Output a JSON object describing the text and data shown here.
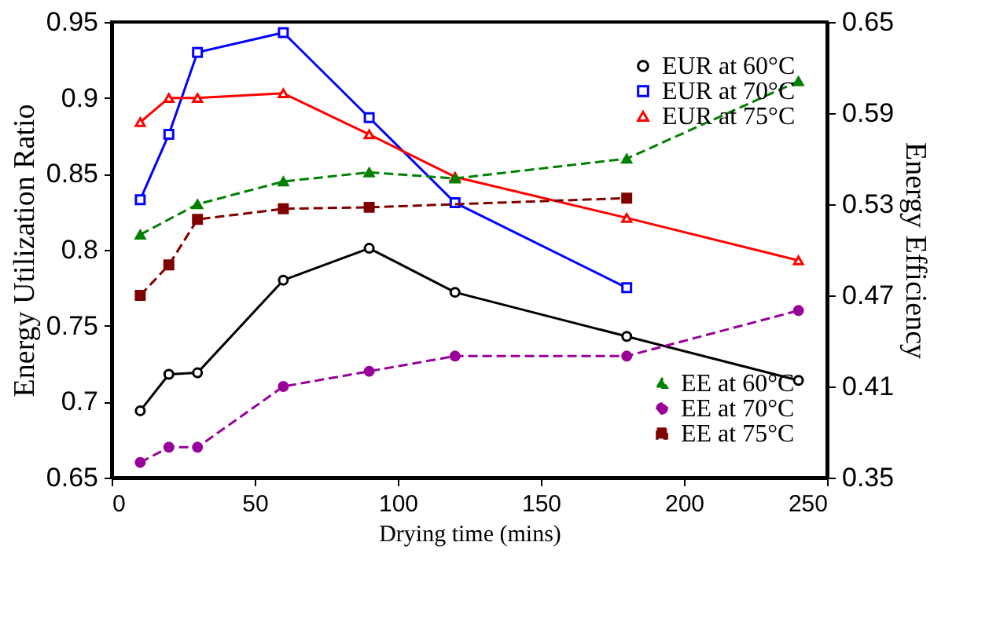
{
  "chart_data": {
    "type": "line",
    "xlabel": "Drying time (mins)",
    "ylabel": "Energy Utilization Ratio",
    "y2label": "Energy Efficiency",
    "xlim": [
      0,
      250
    ],
    "xticks": [
      0,
      50,
      100,
      150,
      200,
      250
    ],
    "ylim": [
      0.65,
      0.95
    ],
    "yticks": [
      0.65,
      0.7,
      0.75,
      0.8,
      0.85,
      0.9,
      0.95
    ],
    "y2lim": [
      0.35,
      0.65
    ],
    "y2ticks": [
      0.35,
      0.41,
      0.47,
      0.53,
      0.59,
      0.65
    ],
    "grid": false,
    "legend": "top right",
    "series": [
      {
        "name": "EUR at 60°C",
        "color": "#000000",
        "marker": "circle",
        "line_style": "solid",
        "x": [
          10,
          20,
          30,
          60,
          90,
          120,
          180,
          240
        ],
        "values": [
          0.694,
          0.718,
          0.719,
          0.78,
          0.801,
          0.772,
          0.743,
          0.714
        ]
      },
      {
        "name": "EUR at 70°C",
        "color": "#0000ff",
        "marker": "square",
        "line_style": "solid",
        "x": [
          10,
          20,
          30,
          60,
          90,
          120,
          180
        ],
        "values": [
          0.833,
          0.876,
          0.93,
          0.943,
          0.887,
          0.831,
          0.775
        ]
      },
      {
        "name": "EUR at 75°C",
        "color": "#ff0000",
        "marker": "triangle",
        "line_style": "solid",
        "x": [
          10,
          20,
          30,
          60,
          90,
          120,
          180,
          240
        ],
        "values": [
          0.884,
          0.9,
          0.9,
          0.903,
          0.876,
          0.848,
          0.821,
          0.793
        ]
      },
      {
        "name": "EE at 60°C",
        "color": "#008000",
        "marker": "triangle",
        "line_style": "dashed",
        "axis": "y2",
        "x": [
          10,
          30,
          60,
          90,
          120,
          180,
          240
        ],
        "values": [
          0.51,
          0.53,
          0.545,
          0.551,
          0.547,
          0.56,
          0.611
        ]
      },
      {
        "name": "EE at 70°C",
        "color": "#990099",
        "marker": "circle",
        "line_style": "dashed",
        "axis": "y2",
        "x": [
          10,
          20,
          30,
          60,
          90,
          120,
          180,
          240
        ],
        "values": [
          0.36,
          0.37,
          0.37,
          0.41,
          0.42,
          0.43,
          0.43,
          0.46
        ]
      },
      {
        "name": "EE at 75°C",
        "color": "#800000",
        "marker": "square",
        "line_style": "dashed",
        "axis": "y2",
        "x": [
          10,
          20,
          30,
          60,
          90,
          180
        ],
        "values": [
          0.47,
          0.49,
          0.52,
          0.527,
          0.528,
          0.534
        ]
      }
    ]
  }
}
